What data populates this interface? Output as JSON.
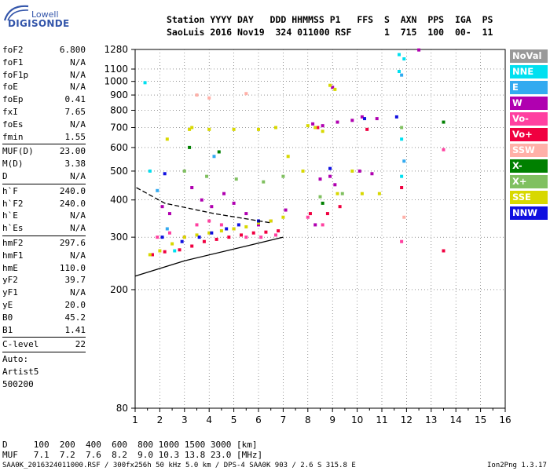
{
  "logo": {
    "line1": "Lowell",
    "line2": "DIGISONDE"
  },
  "header": {
    "line1": "Station YYYY DAY   DDD HHMMSS P1   FFS  S  AXN  PPS  IGA  PS",
    "line2": "SaoLuis 2016 Nov19  324 011000 RSF      1  715  100  00-  11"
  },
  "params": {
    "group1": [
      {
        "name": "foF2",
        "value": "6.800"
      },
      {
        "name": "foF1",
        "value": "N/A"
      },
      {
        "name": "foF1p",
        "value": "N/A"
      },
      {
        "name": "foE",
        "value": "N/A"
      },
      {
        "name": "foEp",
        "value": "0.41"
      },
      {
        "name": "fxI",
        "value": "7.65"
      },
      {
        "name": "foEs",
        "value": "N/A"
      },
      {
        "name": "fmin",
        "value": "1.55"
      }
    ],
    "group2": [
      {
        "name": "MUF(D)",
        "value": "23.00"
      },
      {
        "name": "M(D)",
        "value": "3.38"
      },
      {
        "name": "D",
        "value": "N/A"
      }
    ],
    "group3": [
      {
        "name": "h`F",
        "value": "240.0"
      },
      {
        "name": "h`F2",
        "value": "240.0"
      },
      {
        "name": "h`E",
        "value": "N/A"
      },
      {
        "name": "h`Es",
        "value": "N/A"
      }
    ],
    "group4": [
      {
        "name": "hmF2",
        "value": "297.6"
      },
      {
        "name": "hmF1",
        "value": "N/A"
      },
      {
        "name": "hmE",
        "value": "110.0"
      },
      {
        "name": "yF2",
        "value": "39.7"
      },
      {
        "name": "yF1",
        "value": "N/A"
      },
      {
        "name": "yE",
        "value": "20.0"
      },
      {
        "name": "B0",
        "value": "45.2"
      },
      {
        "name": "B1",
        "value": "1.41"
      }
    ],
    "group5": [
      {
        "name": "C-level",
        "value": "22"
      }
    ],
    "autoscale": {
      "line1": "Auto:",
      "line2": "Artist5",
      "line3": "500200"
    }
  },
  "legend": [
    {
      "label": "NoVal",
      "color": "#999999"
    },
    {
      "label": "NNE",
      "color": "#00e0f0"
    },
    {
      "label": "E",
      "color": "#33aaf0"
    },
    {
      "label": "W",
      "color": "#b000b0"
    },
    {
      "label": "Vo-",
      "color": "#ff40a0"
    },
    {
      "label": "Vo+",
      "color": "#f00040"
    },
    {
      "label": "SSW",
      "color": "#ffb0a8"
    },
    {
      "label": "X-",
      "color": "#008000"
    },
    {
      "label": "X+",
      "color": "#80c060"
    },
    {
      "label": "SSE",
      "color": "#d8d800"
    },
    {
      "label": "NNW",
      "color": "#1010e0"
    }
  ],
  "footer": {
    "d_line": "D     100  200  400  600  800 1000 1500 3000 [km]",
    "muf_line": "MUF   7.1  7.2  7.6  8.2  9.0 10.3 13.8 23.0 [MHz]",
    "info_line": "SAA0K_2016324011000.RSF / 300fx256h 50 kHz 5.0 km / DPS-4 SAA0K 903 / 2.6 S 315.8 E",
    "version": "Ion2Png 1.3.17"
  },
  "chart_data": {
    "type": "scatter",
    "xlabel": "",
    "ylabel": "",
    "xlim": [
      1,
      16
    ],
    "ylim": [
      80,
      1280
    ],
    "x_scale": "linear",
    "y_scale": "log",
    "grid": true,
    "legend_position": "right",
    "x_ticks": [
      1,
      2,
      3,
      4,
      5,
      6,
      7,
      8,
      9,
      10,
      11,
      12,
      13,
      14,
      15,
      16
    ],
    "y_ticks": [
      80,
      200,
      300,
      400,
      500,
      600,
      700,
      800,
      900,
      1000,
      1100,
      1280
    ],
    "series": [
      {
        "name": "NNE",
        "color": "#00e0f0",
        "points": [
          [
            1.4,
            990
          ],
          [
            11.7,
            1230
          ],
          [
            11.7,
            1080
          ],
          [
            11.9,
            1190
          ],
          [
            11.8,
            640
          ],
          [
            1.6,
            500
          ],
          [
            2.6,
            270
          ],
          [
            11.8,
            480
          ]
        ]
      },
      {
        "name": "E",
        "color": "#33aaf0",
        "points": [
          [
            11.8,
            1050
          ],
          [
            11.9,
            540
          ],
          [
            1.9,
            430
          ],
          [
            2.3,
            320
          ],
          [
            4.2,
            560
          ]
        ]
      },
      {
        "name": "W",
        "color": "#b000b0",
        "points": [
          [
            2.1,
            380
          ],
          [
            2.4,
            360
          ],
          [
            3.3,
            440
          ],
          [
            3.7,
            400
          ],
          [
            4.1,
            380
          ],
          [
            4.6,
            420
          ],
          [
            5.0,
            390
          ],
          [
            5.5,
            360
          ],
          [
            6.0,
            330
          ],
          [
            6.5,
            340
          ],
          [
            7.1,
            370
          ],
          [
            8.2,
            720
          ],
          [
            8.6,
            710
          ],
          [
            9.2,
            730
          ],
          [
            9.8,
            740
          ],
          [
            10.2,
            760
          ],
          [
            10.8,
            750
          ],
          [
            8.5,
            470
          ],
          [
            8.9,
            480
          ],
          [
            9.1,
            450
          ],
          [
            10.1,
            500
          ],
          [
            10.6,
            490
          ],
          [
            12.5,
            1275
          ],
          [
            9.0,
            955
          ],
          [
            8.3,
            330
          ]
        ]
      },
      {
        "name": "Vo-",
        "color": "#ff40a0",
        "points": [
          [
            1.9,
            300
          ],
          [
            2.4,
            310
          ],
          [
            3.0,
            300
          ],
          [
            3.5,
            330
          ],
          [
            4.0,
            340
          ],
          [
            4.5,
            330
          ],
          [
            5.0,
            320
          ],
          [
            5.5,
            300
          ],
          [
            6.1,
            300
          ],
          [
            6.7,
            305
          ],
          [
            8.0,
            350
          ],
          [
            8.6,
            330
          ],
          [
            11.8,
            290
          ],
          [
            13.5,
            590
          ]
        ]
      },
      {
        "name": "Vo+",
        "color": "#f00040",
        "points": [
          [
            1.7,
            262
          ],
          [
            2.2,
            268
          ],
          [
            2.8,
            272
          ],
          [
            3.3,
            280
          ],
          [
            3.8,
            290
          ],
          [
            4.3,
            295
          ],
          [
            4.8,
            300
          ],
          [
            5.3,
            305
          ],
          [
            5.8,
            310
          ],
          [
            6.3,
            312
          ],
          [
            6.8,
            315
          ],
          [
            8.1,
            360
          ],
          [
            8.8,
            360
          ],
          [
            9.3,
            380
          ],
          [
            11.8,
            440
          ],
          [
            13.5,
            270
          ],
          [
            8.4,
            700
          ],
          [
            10.4,
            690
          ]
        ]
      },
      {
        "name": "SSW",
        "color": "#ffb0a8",
        "points": [
          [
            3.5,
            900
          ],
          [
            4.0,
            880
          ],
          [
            5.5,
            910
          ],
          [
            11.9,
            350
          ]
        ]
      },
      {
        "name": "X-",
        "color": "#008000",
        "points": [
          [
            3.2,
            600
          ],
          [
            4.4,
            580
          ],
          [
            8.6,
            390
          ],
          [
            13.5,
            730
          ]
        ]
      },
      {
        "name": "X+",
        "color": "#80c060",
        "points": [
          [
            3.0,
            500
          ],
          [
            3.9,
            480
          ],
          [
            5.1,
            470
          ],
          [
            6.2,
            460
          ],
          [
            7.0,
            480
          ],
          [
            8.5,
            410
          ],
          [
            9.4,
            420
          ],
          [
            11.8,
            700
          ]
        ]
      },
      {
        "name": "SSE",
        "color": "#d8d800",
        "points": [
          [
            1.6,
            262
          ],
          [
            2.0,
            270
          ],
          [
            2.5,
            285
          ],
          [
            3.0,
            300
          ],
          [
            3.5,
            305
          ],
          [
            4.0,
            310
          ],
          [
            4.5,
            315
          ],
          [
            5.0,
            320
          ],
          [
            5.5,
            325
          ],
          [
            6.0,
            335
          ],
          [
            6.5,
            340
          ],
          [
            7.0,
            350
          ],
          [
            3.2,
            690
          ],
          [
            4.0,
            690
          ],
          [
            5.0,
            690
          ],
          [
            6.0,
            690
          ],
          [
            6.7,
            700
          ],
          [
            7.2,
            560
          ],
          [
            7.8,
            500
          ],
          [
            8.0,
            710
          ],
          [
            8.3,
            700
          ],
          [
            8.6,
            680
          ],
          [
            9.2,
            420
          ],
          [
            9.8,
            500
          ],
          [
            10.2,
            420
          ],
          [
            10.9,
            420
          ],
          [
            2.3,
            640
          ],
          [
            3.3,
            700
          ],
          [
            8.9,
            970
          ],
          [
            9.1,
            940
          ]
        ]
      },
      {
        "name": "NNW",
        "color": "#1010e0",
        "points": [
          [
            2.1,
            300
          ],
          [
            2.9,
            290
          ],
          [
            3.6,
            300
          ],
          [
            4.1,
            310
          ],
          [
            4.7,
            320
          ],
          [
            5.2,
            330
          ],
          [
            6.0,
            340
          ],
          [
            8.9,
            510
          ],
          [
            10.3,
            750
          ],
          [
            11.6,
            760
          ],
          [
            2.2,
            490
          ]
        ]
      }
    ],
    "trace_lines": [
      {
        "label": "dashed",
        "points": [
          [
            1.05,
            440
          ],
          [
            2.2,
            390
          ],
          [
            4.2,
            360
          ],
          [
            6.5,
            335
          ]
        ]
      },
      {
        "label": "solid",
        "points": [
          [
            1.0,
            222
          ],
          [
            3.0,
            250
          ],
          [
            5.5,
            280
          ],
          [
            7.0,
            300
          ]
        ]
      }
    ]
  }
}
